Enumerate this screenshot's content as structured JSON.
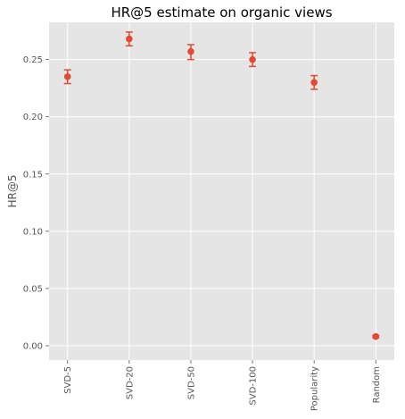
{
  "chart_data": {
    "type": "scatter",
    "title": "HR@5 estimate on organic views",
    "xlabel": "",
    "ylabel": "HR@5",
    "categories": [
      "SVD-5",
      "SVD-20",
      "SVD-50",
      "SVD-100",
      "Popularity",
      "Random"
    ],
    "values": [
      0.235,
      0.268,
      0.257,
      0.25,
      0.23,
      0.008
    ],
    "error_low": [
      0.229,
      0.262,
      0.25,
      0.244,
      0.224,
      0.007
    ],
    "error_high": [
      0.241,
      0.274,
      0.263,
      0.256,
      0.236,
      0.009
    ],
    "ylim": [
      -0.0125,
      0.2825
    ],
    "yticks": [
      0.0,
      0.05,
      0.1,
      0.15,
      0.2,
      0.25
    ],
    "ytick_labels": [
      "0.00",
      "0.05",
      "0.10",
      "0.15",
      "0.20",
      "0.25"
    ],
    "grid": true,
    "colors": {
      "point": "#E24A33",
      "axes_background": "#E5E5E5",
      "grid": "#FFFFFF",
      "tick_text": "#555555"
    }
  }
}
